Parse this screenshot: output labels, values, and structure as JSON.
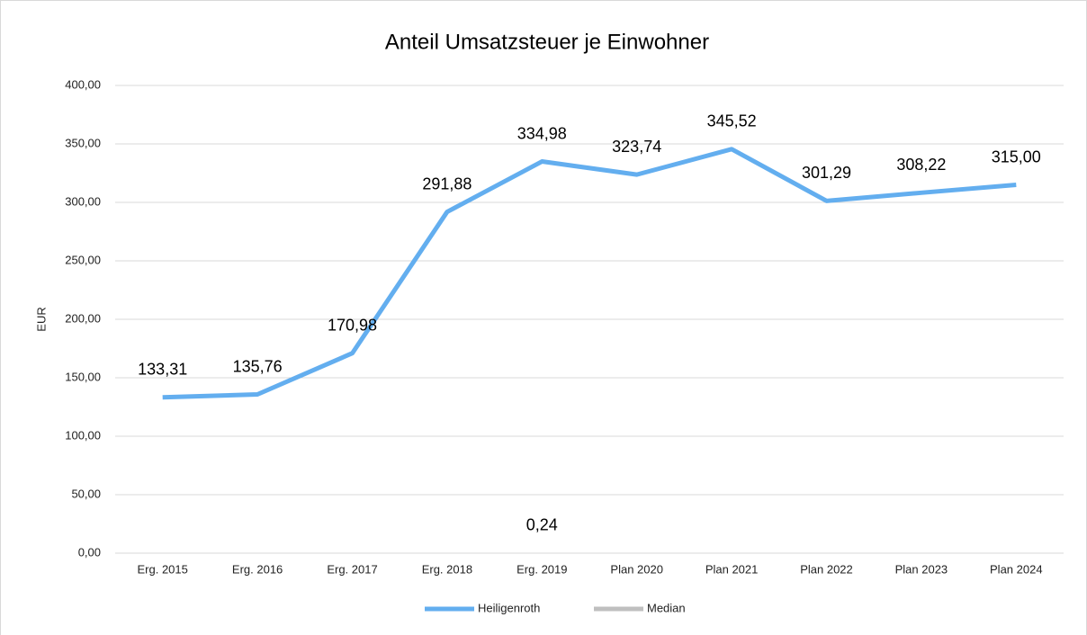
{
  "chart_data": {
    "type": "line",
    "title": "Anteil Umsatzsteuer je Einwohner",
    "y_label": "EUR",
    "categories": [
      "Erg. 2015",
      "Erg. 2016",
      "Erg. 2017",
      "Erg. 2018",
      "Erg. 2019",
      "Plan 2020",
      "Plan 2021",
      "Plan 2022",
      "Plan 2023",
      "Plan 2024"
    ],
    "series": [
      {
        "name": "Heiligenroth",
        "color": "#63aeef",
        "values": [
          133.31,
          135.76,
          170.98,
          291.88,
          334.98,
          323.74,
          345.52,
          301.29,
          308.22,
          315.0
        ],
        "value_labels": [
          "133,31",
          "135,76",
          "170,98",
          "291,88",
          "334,98",
          "323,74",
          "345,52",
          "301,29",
          "308,22",
          "315,00"
        ]
      },
      {
        "name": "Median",
        "color": "#bfbfbf",
        "values": [
          null,
          null,
          null,
          null,
          0.24,
          null,
          null,
          null,
          null,
          null
        ],
        "value_labels": [
          null,
          null,
          null,
          null,
          "0,24",
          null,
          null,
          null,
          null,
          null
        ]
      }
    ],
    "ylim": [
      0,
      400
    ],
    "yticks": [
      {
        "value": 0,
        "label": "0,00"
      },
      {
        "value": 50,
        "label": "50,00"
      },
      {
        "value": 100,
        "label": "100,00"
      },
      {
        "value": 150,
        "label": "150,00"
      },
      {
        "value": 200,
        "label": "200,00"
      },
      {
        "value": 250,
        "label": "250,00"
      },
      {
        "value": 300,
        "label": "300,00"
      },
      {
        "value": 350,
        "label": "350,00"
      },
      {
        "value": 400,
        "label": "400,00"
      }
    ],
    "grid": true,
    "legend": "bottom"
  }
}
